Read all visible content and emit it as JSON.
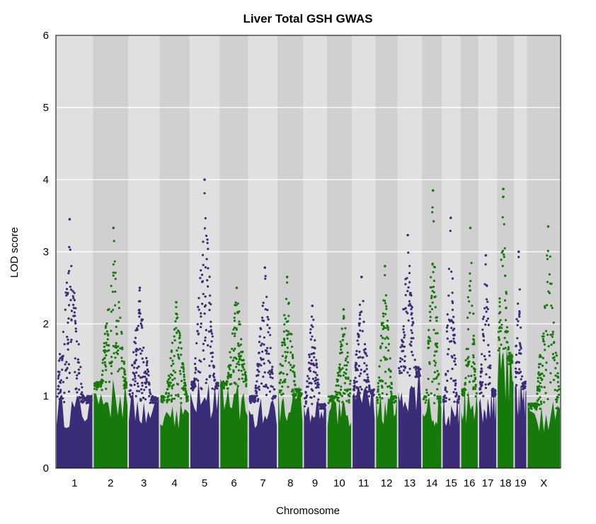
{
  "chart_data": {
    "type": "scatter",
    "title": "Liver Total GSH GWAS",
    "xlabel": "Chromosome",
    "ylabel": "LOD score",
    "ylim": [
      0,
      6
    ],
    "yticks": [
      "0",
      "1",
      "2",
      "3",
      "4",
      "5",
      "6"
    ],
    "grid": "horizontal",
    "legend": "none",
    "colors": {
      "odd_chromosomes": "#3b2c78",
      "even_chromosomes": "#157a0a",
      "band_light": "#e0e0e0",
      "band_dark": "#d0d0d0",
      "gridline": "#ffffff"
    },
    "chromosomes": [
      {
        "label": "1",
        "peak": 3.45,
        "base": 1.0,
        "notes": "high values at both ends of chromosome"
      },
      {
        "label": "2",
        "peak": 3.33,
        "base": 1.2
      },
      {
        "label": "3",
        "peak": 2.5,
        "base": 1.0
      },
      {
        "label": "4",
        "peak": 2.3,
        "base": 1.0
      },
      {
        "label": "5",
        "peak": 4.0,
        "base": 1.2
      },
      {
        "label": "6",
        "peak": 2.5,
        "base": 1.2
      },
      {
        "label": "7",
        "peak": 2.78,
        "base": 1.0
      },
      {
        "label": "8",
        "peak": 2.65,
        "base": 1.1
      },
      {
        "label": "9",
        "peak": 2.25,
        "base": 0.9
      },
      {
        "label": "10",
        "peak": 2.2,
        "base": 1.0
      },
      {
        "label": "11",
        "peak": 2.65,
        "base": 1.1
      },
      {
        "label": "12",
        "peak": 2.8,
        "base": 1.0
      },
      {
        "label": "13",
        "peak": 3.23,
        "base": 1.4
      },
      {
        "label": "14",
        "peak": 3.85,
        "base": 1.0
      },
      {
        "label": "15",
        "peak": 3.47,
        "base": 1.0
      },
      {
        "label": "16",
        "peak": 3.33,
        "base": 1.1
      },
      {
        "label": "17",
        "peak": 2.95,
        "base": 1.1
      },
      {
        "label": "18",
        "peak": 3.87,
        "base": 1.6
      },
      {
        "label": "19",
        "peak": 3.0,
        "base": 1.2
      },
      {
        "label": "X",
        "peak": 3.35,
        "base": 0.9
      }
    ]
  }
}
